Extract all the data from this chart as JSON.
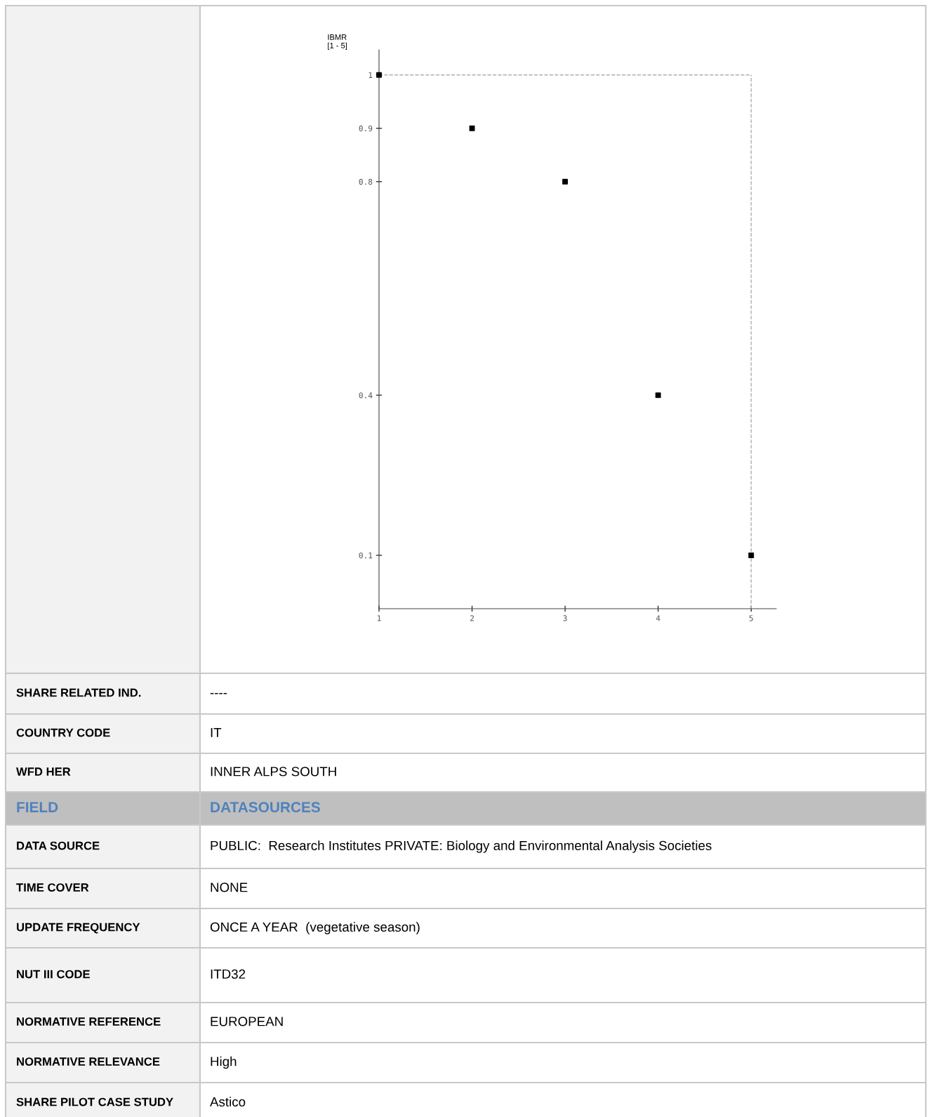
{
  "chart_data": {
    "type": "scatter",
    "ylabel": "IBMR\n[1 - 5]",
    "x": [
      1,
      2,
      3,
      4,
      5
    ],
    "series": [
      {
        "color": "#000000",
        "values": [
          1,
          0.9,
          0.8,
          0.4,
          0.1
        ]
      }
    ],
    "marker": "square",
    "xlim": [
      1,
      5.27
    ],
    "xticks": [
      1,
      2,
      3,
      4,
      5
    ],
    "ylim": [
      0,
      1.047
    ],
    "yticks": [
      0.1,
      0.4,
      0.8,
      0.9,
      1
    ],
    "grid": false,
    "legend": false,
    "ref_lines": [
      {
        "axis": "y",
        "value": 1,
        "color": "#b0b0b0",
        "line_style": "dashed"
      },
      {
        "axis": "x",
        "value": 5,
        "color": "#b0b0b0",
        "line_style": "dashed"
      }
    ],
    "annotations": [
      "SHARE RELATED IND.",
      "----",
      "COUNTRY CODE",
      "IT",
      "WFD HER",
      "INNER ALPS SOUTH",
      "FIELD",
      "DATASOURCES",
      "DATA SOURCE",
      "PUBLIC:  Research Institutes PRIVATE: Biology and Environmental Analysis Societies",
      "TIME COVER",
      "NONE",
      "UPDATE FREQUENCY",
      "ONCE A YEAR  (vegetative season)",
      "NUT III CODE",
      "ITD32",
      "NORMATIVE REFERENCE",
      "EUROPEAN",
      "NORMATIVE RELEVANCE",
      "High",
      "SHARE PILOT CASE STUDY",
      "Astico"
    ]
  }
}
